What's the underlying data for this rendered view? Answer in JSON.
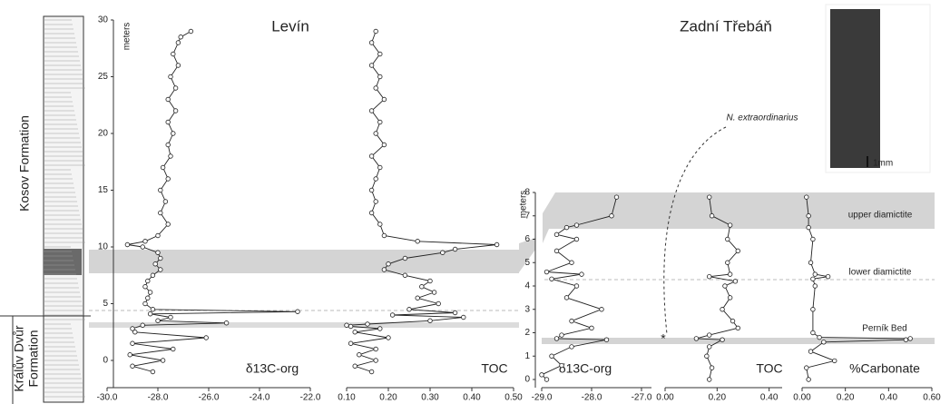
{
  "labels": {
    "left_title": "Levín",
    "right_title": "Zadní Třebáň",
    "kosov": "Kosov Formation",
    "kraluv": [
      "Králův Dvůr",
      "Formation"
    ],
    "species": "N. extraordinarius",
    "scale": "1mm",
    "upper": "upper diamictite",
    "lower": "lower diamictite",
    "pernik": "Perník Bed"
  },
  "chart_data": [
    {
      "type": "line",
      "xlabel": "δ13C-org",
      "ylabel": "meters",
      "xlim": [
        -30,
        -22
      ],
      "xticks": [
        {
          "value": -30,
          "label": "-30.0"
        },
        {
          "value": -28,
          "label": "-28.0"
        },
        {
          "value": -26,
          "label": "-26.0"
        },
        {
          "value": -24,
          "label": "-24.0"
        },
        {
          "value": -22,
          "label": "-22.0"
        }
      ],
      "ylim": [
        -2.4,
        30
      ],
      "yticks": [
        0,
        5,
        10,
        15,
        20,
        25,
        30
      ],
      "depth": [
        29,
        28.5,
        28,
        27,
        26,
        25,
        24,
        23,
        22,
        21,
        20,
        19,
        18,
        17,
        16,
        15,
        14,
        13,
        12,
        11,
        10.5,
        10.2,
        10,
        9.5,
        9,
        8.5,
        8,
        7.5,
        7,
        6.5,
        6,
        5.5,
        5,
        4.5,
        4.3,
        4.1,
        3.8,
        3.5,
        3.3,
        3.1,
        2.8,
        2.5,
        2,
        1.5,
        1,
        0.5,
        0,
        -0.5,
        -1
      ],
      "values": [
        -26.7,
        -27.1,
        -27.2,
        -27.4,
        -27.2,
        -27.5,
        -27.3,
        -27.6,
        -27.3,
        -27.6,
        -27.4,
        -27.6,
        -27.5,
        -27.8,
        -27.6,
        -27.9,
        -27.7,
        -27.9,
        -27.6,
        -28,
        -28.5,
        -29.2,
        -28.6,
        -28,
        -27.9,
        -28.1,
        -27.9,
        -28.2,
        -28.4,
        -28.5,
        -28.3,
        -28.4,
        -28.5,
        -28.2,
        -22.5,
        -28.3,
        -27.5,
        -28,
        -25.3,
        -28.6,
        -29,
        -28.9,
        -26.1,
        -29,
        -27.4,
        -29.1,
        -27.8,
        -29,
        -28.2
      ],
      "color": "#222"
    },
    {
      "type": "line",
      "xlabel": "TOC",
      "xlim": [
        0.1,
        0.5
      ],
      "xticks": [
        {
          "value": 0.1,
          "label": "0.10"
        },
        {
          "value": 0.2,
          "label": "0.20"
        },
        {
          "value": 0.3,
          "label": "0.30"
        },
        {
          "value": 0.4,
          "label": "0.40"
        },
        {
          "value": 0.5,
          "label": "0.50"
        }
      ],
      "ylim": [
        -2.4,
        30
      ],
      "depth": [
        29,
        28,
        27,
        26,
        25,
        24,
        23,
        22,
        21,
        20,
        19,
        18,
        17,
        16,
        15,
        14,
        13,
        12,
        11,
        10.5,
        10.2,
        9.8,
        9.5,
        9,
        8.5,
        8,
        7.5,
        7,
        6.5,
        6,
        5.5,
        5,
        4.5,
        4.2,
        4,
        3.8,
        3.5,
        3.2,
        3.1,
        3,
        2.8,
        2.5,
        2,
        1.5,
        1,
        0.5,
        0,
        -0.5,
        -1
      ],
      "values": [
        0.17,
        0.16,
        0.18,
        0.16,
        0.18,
        0.17,
        0.19,
        0.16,
        0.18,
        0.17,
        0.19,
        0.16,
        0.18,
        0.17,
        0.16,
        0.17,
        0.16,
        0.18,
        0.19,
        0.27,
        0.46,
        0.36,
        0.33,
        0.24,
        0.2,
        0.19,
        0.24,
        0.3,
        0.28,
        0.31,
        0.27,
        0.32,
        0.25,
        0.36,
        0.21,
        0.38,
        0.3,
        0.15,
        0.1,
        0.11,
        0.18,
        0.12,
        0.2,
        0.11,
        0.17,
        0.13,
        0.17,
        0.12,
        0.16
      ],
      "color": "#222"
    },
    {
      "type": "line",
      "xlabel": "δ13C-org",
      "ylabel": "meters",
      "xlim": [
        -29,
        -26.8
      ],
      "xticks": [
        {
          "value": -29,
          "label": "-29.0"
        },
        {
          "value": -28,
          "label": "-28.0"
        },
        {
          "value": -27,
          "label": "-27.0"
        }
      ],
      "ylim": [
        -0.35,
        8
      ],
      "yticks": [
        0,
        1,
        2,
        3,
        4,
        5,
        6,
        7,
        8
      ],
      "depth": [
        7.8,
        7,
        6.6,
        6.5,
        6.2,
        6,
        5.5,
        5,
        4.6,
        4.5,
        4.3,
        4,
        3.5,
        3,
        2.5,
        2.2,
        1.9,
        1.75,
        1.7,
        1.4,
        1,
        0.6,
        0.2,
        0
      ],
      "values": [
        -27.5,
        -27.6,
        -28.3,
        -28.5,
        -28.7,
        -28.3,
        -28.7,
        -28.4,
        -28.9,
        -28.2,
        -28.8,
        -28.3,
        -28.5,
        -27.8,
        -28.4,
        -28,
        -28.6,
        -28.7,
        -27.7,
        -28.4,
        -28.8,
        -28.6,
        -29,
        -28.9
      ],
      "color": "#222"
    },
    {
      "type": "line",
      "xlabel": "TOC",
      "xlim": [
        0,
        0.45
      ],
      "xticks": [
        {
          "value": 0,
          "label": "0.00"
        },
        {
          "value": 0.2,
          "label": "0.20"
        },
        {
          "value": 0.4,
          "label": "0.40"
        }
      ],
      "ylim": [
        -0.35,
        8
      ],
      "depth": [
        7.8,
        7,
        6.6,
        6,
        5.5,
        5,
        4.5,
        4.4,
        4.2,
        4,
        3.5,
        3,
        2.5,
        2.2,
        1.9,
        1.75,
        1.7,
        1.4,
        1,
        0.5,
        0
      ],
      "values": [
        0.17,
        0.18,
        0.25,
        0.24,
        0.28,
        0.24,
        0.25,
        0.17,
        0.27,
        0.23,
        0.25,
        0.22,
        0.26,
        0.28,
        0.17,
        0.12,
        0.22,
        0.17,
        0.16,
        0.18,
        0.17
      ],
      "color": "#222"
    },
    {
      "type": "line",
      "xlabel": "%Carbonate",
      "xlim": [
        0,
        0.6
      ],
      "xticks": [
        {
          "value": 0,
          "label": "0.00"
        },
        {
          "value": 0.2,
          "label": "0.20"
        },
        {
          "value": 0.4,
          "label": "0.40"
        },
        {
          "value": 0.6,
          "label": "0.60"
        }
      ],
      "ylim": [
        -0.35,
        8
      ],
      "depth": [
        7.8,
        7,
        6.5,
        6,
        5,
        4.5,
        4.4,
        4.3,
        4,
        3,
        2,
        1.8,
        1.75,
        1.7,
        1.6,
        1.2,
        0.8,
        0.5,
        0
      ],
      "values": [
        0.02,
        0.03,
        0.03,
        0.05,
        0.04,
        0.06,
        0.12,
        0.05,
        0.06,
        0.05,
        0.05,
        0.08,
        0.5,
        0.48,
        0.1,
        0.04,
        0.15,
        0.02,
        0.03
      ],
      "color": "#222"
    }
  ]
}
